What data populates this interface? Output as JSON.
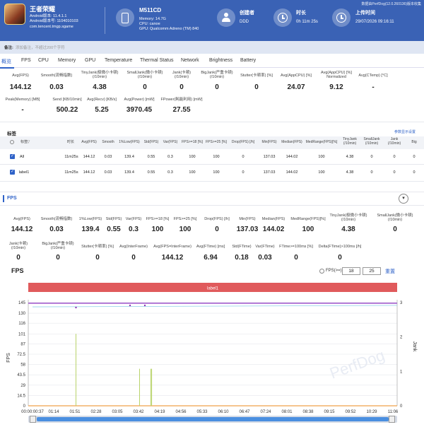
{
  "header": {
    "app_name": "王者荣耀",
    "android_version": "Android版本: 11.4.1.1",
    "android_code": "Android版本号: 1104010103",
    "package": "com.tencent.tmgp.sgame",
    "device_name": "M511CD",
    "memory": "Memory: 14.7G",
    "cpu": "CPU: canoe",
    "gpu": "GPU: Qualcomm Adreno (TM) 840",
    "creator_label": "创建者",
    "creator_value": "DDD",
    "duration_label": "时长",
    "duration_value": "0h 11m 25s",
    "upload_label": "上传时间",
    "upload_value": "29/07/2026 09:16:11",
    "source_note": "数据由PerfDog(12.0.260136)版本收集"
  },
  "note": {
    "label": "备注:",
    "placeholder": "添加备注，不超过200个字符"
  },
  "tabs": [
    "概览",
    "FPS",
    "CPU",
    "Memory",
    "GPU",
    "Temperature",
    "Thermal Status",
    "Network",
    "Brightness",
    "Battery"
  ],
  "summary_row1": [
    {
      "label": "Avg(FPS)",
      "value": "144.12"
    },
    {
      "label": "Smooth(流畅指数)",
      "value": "0.03"
    },
    {
      "label": "TinyJank(极微小卡顿)\n(/10min)",
      "value": "4.38"
    },
    {
      "label": "SmallJank(微小卡顿)\n(/10min)",
      "value": "0"
    },
    {
      "label": "Jank(卡顿)\n(/10min)",
      "value": "0"
    },
    {
      "label": "BigJank(严重卡顿)\n(/10min)",
      "value": "0"
    },
    {
      "label": "Stutter(卡顿率) [%]",
      "value": "0"
    },
    {
      "label": "Avg(AppCPU) [%]",
      "value": "24.07"
    },
    {
      "label": "Avg(AppCPU) [%]\nNormalized",
      "value": "9.12"
    },
    {
      "label": "Avg(CTemp) [°C]",
      "value": "-"
    }
  ],
  "summary_row2": [
    {
      "label": "Peak(Memory) [MB]",
      "value": "-"
    },
    {
      "label": "Send [KB/10min]",
      "value": "500.22"
    },
    {
      "label": "Avg(Recv) [KB/s]",
      "value": "5.25"
    },
    {
      "label": "Avg(Power) [mW]",
      "value": "3970.45"
    },
    {
      "label": "FPower(耗能利用) [mW]",
      "value": "27.55"
    }
  ],
  "labels_section": {
    "title": "标签",
    "settings_link": "参数显示设置"
  },
  "table": {
    "headers": [
      "标签",
      "时长",
      "Avg(FPS)",
      "Smooth",
      "1%Low(FPS)",
      "Std(FPS)",
      "Var(FPS)",
      "FPS>=18 [%]",
      "FPS>=25 [%]",
      "Drop(FPS) [/h]",
      "Min(FPS)",
      "Median(FPS)",
      "MedRange(FPS)[%]",
      "TinyJank\n(/10min)",
      "SmallJank\n(/10min)",
      "Jank\n(/10min)",
      "Big"
    ],
    "rows": [
      [
        "All",
        "11m25s",
        "144.12",
        "0.03",
        "139.4",
        "0.55",
        "0.3",
        "100",
        "100",
        "0",
        "137.03",
        "144.02",
        "100",
        "4.38",
        "0",
        "0",
        "0"
      ],
      [
        "label1",
        "11m25s",
        "144.12",
        "0.03",
        "139.4",
        "0.55",
        "0.3",
        "100",
        "100",
        "0",
        "137.03",
        "144.02",
        "100",
        "4.38",
        "0",
        "0",
        "0"
      ]
    ]
  },
  "fps_section": {
    "title": "FPS",
    "chevron": "▾"
  },
  "fps_row1": [
    {
      "label": "Avg(FPS)",
      "value": "144.12"
    },
    {
      "label": "Smooth(流畅指数)",
      "value": "0.03"
    },
    {
      "label": "1%Low(FPS)",
      "value": "139.4"
    },
    {
      "label": "Std(FPS)",
      "value": "0.55"
    },
    {
      "label": "Var(FPS)",
      "value": "0.3"
    },
    {
      "label": "FPS>=18 [%]",
      "value": "100"
    },
    {
      "label": "FPS>=25 [%]",
      "value": "100"
    },
    {
      "label": "Drop(FPS) [/h]",
      "value": "0"
    },
    {
      "label": "Min(FPS)",
      "value": "137.03"
    },
    {
      "label": "Median(FPS)",
      "value": "144.02"
    },
    {
      "label": "MedRange(FPS)[%]",
      "value": "100"
    },
    {
      "label": "TinyJank(极微小卡顿)\n(/10min)",
      "value": "4.38"
    },
    {
      "label": "SmallJank(微小卡顿)\n(/10min)",
      "value": "0"
    }
  ],
  "fps_row2": [
    {
      "label": "Jank(卡顿)\n(/10min)",
      "value": "0"
    },
    {
      "label": "BigJank(严重卡顿)\n(/10min)",
      "value": "0"
    },
    {
      "label": "Stutter(卡顿率) [%]",
      "value": "0"
    },
    {
      "label": "Avg(InterFrame)",
      "value": "0"
    },
    {
      "label": "Avg(FPS=InterFrame)",
      "value": "144.12"
    },
    {
      "label": "Avg(FTime) [ms]",
      "value": "6.94"
    },
    {
      "label": "Std(FTime)",
      "value": "0.18"
    },
    {
      "label": "Var(FTime)",
      "value": "0.03"
    },
    {
      "label": "FTime>=100ms [%]",
      "value": "0"
    },
    {
      "label": "Delta(FTime)>100ms [/h]",
      "value": "0"
    }
  ],
  "chart_controls": {
    "title": "FPS",
    "fps_ge_label": "FPS(>=)",
    "input1": "18",
    "input2": "25",
    "reset": "重置"
  },
  "chart_data": {
    "type": "line",
    "title": "FPS",
    "label_band": "label1",
    "ylabel": "FPS",
    "y2label": "Jank",
    "yticks": [
      "0",
      "14.5",
      "29",
      "43.5",
      "58",
      "72.5",
      "87",
      "101",
      "116",
      "130",
      "145"
    ],
    "y2ticks": [
      "0",
      "1",
      "2",
      "3"
    ],
    "ylim": [
      0,
      159.5
    ],
    "y2lim": [
      0,
      3
    ],
    "xticks": [
      "00:00:00:37",
      "01:14",
      "01:51",
      "02:28",
      "03:05",
      "03:42",
      "04:19",
      "04:56",
      "05:33",
      "06:10",
      "06:47",
      "07:24",
      "08:01",
      "08:38",
      "09:15",
      "09:52",
      "10:29",
      "11:06"
    ],
    "series": [
      {
        "name": "FPS",
        "color": "#9b4fc9",
        "level": 144.12
      },
      {
        "name": "Jank",
        "color": "#8fd0e8",
        "level": 0
      },
      {
        "name": "Stutter",
        "color": "#b9d36b",
        "spike_positions": [
          2.05,
          5.05,
          5.58,
          5.62
        ]
      }
    ],
    "markers_fps": [
      138,
      141,
      141
    ]
  },
  "watermark": "PerfDog"
}
